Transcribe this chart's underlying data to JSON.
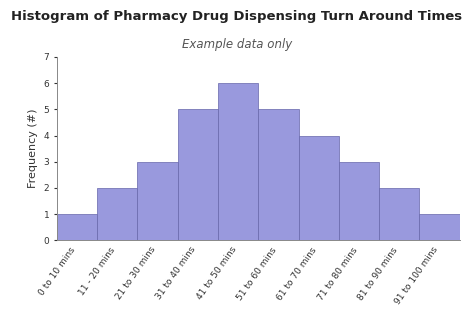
{
  "title": "Histogram of Pharmacy Drug Dispensing Turn Around Times",
  "subtitle": "Example data only",
  "ylabel": "Frequency (#)",
  "categories": [
    "0 to 10 mins",
    "11 - 20 mins",
    "21 to 30 mins",
    "31 to 40 mins",
    "41 to 50 mins",
    "51 to 60 mins",
    "61 to 70 mins",
    "71 to 80 mins",
    "81 to 90 mins",
    "91 to 100 mins"
  ],
  "values": [
    1,
    2,
    3,
    5,
    6,
    5,
    4,
    3,
    2,
    1
  ],
  "bar_color": "#9999dd",
  "bar_edge_color": "#6666aa",
  "ylim": [
    0,
    7
  ],
  "yticks": [
    0,
    1,
    2,
    3,
    4,
    5,
    6,
    7
  ],
  "background_color": "#ffffff",
  "title_fontsize": 9.5,
  "subtitle_fontsize": 8.5,
  "ylabel_fontsize": 8,
  "tick_fontsize": 6.5,
  "subtitle_color": "#555555",
  "title_color": "#222222"
}
